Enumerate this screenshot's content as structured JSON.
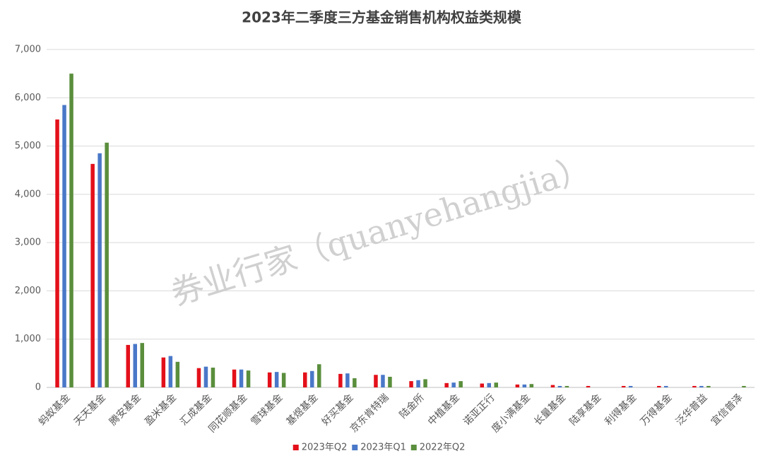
{
  "chart_data": {
    "type": "bar",
    "title": "2023年二季度三方基金销售机构权益类规模",
    "watermark": "券业行家（quanyehangjia）",
    "categories": [
      "蚂蚁基金",
      "天天基金",
      "腾安基金",
      "盈米基金",
      "汇成基金",
      "同花顺基金",
      "雪球基金",
      "基煜基金",
      "好买基金",
      "京东肯特瑞",
      "陆金所",
      "中植基金",
      "诺亚正行",
      "度小满基金",
      "长量基金",
      "陆享基金",
      "利得基金",
      "万得基金",
      "泛华普益",
      "宜信普泽"
    ],
    "series": [
      {
        "name": "2023年Q2",
        "color": "#e3101a",
        "values": [
          5550,
          4630,
          880,
          620,
          400,
          370,
          310,
          310,
          280,
          260,
          130,
          90,
          80,
          60,
          50,
          30,
          30,
          30,
          30,
          null
        ]
      },
      {
        "name": "2023年Q1",
        "color": "#4a78c8",
        "values": [
          5850,
          4850,
          900,
          650,
          430,
          370,
          320,
          340,
          290,
          260,
          150,
          100,
          90,
          60,
          30,
          null,
          30,
          30,
          30,
          null
        ]
      },
      {
        "name": "2022年Q2",
        "color": "#5a8e3c",
        "values": [
          6500,
          5070,
          920,
          530,
          410,
          350,
          300,
          480,
          190,
          220,
          170,
          130,
          100,
          70,
          30,
          null,
          null,
          null,
          30,
          30
        ]
      }
    ],
    "ylim": [
      0,
      7000
    ],
    "yticks": [
      0,
      {
        "value": 1000,
        "label": "1,000"
      },
      {
        "value": 2000,
        "label": "2,000"
      },
      {
        "value": 3000,
        "label": "3,000"
      },
      {
        "value": 4000,
        "label": "4,000"
      },
      {
        "value": 5000,
        "label": "5,000"
      },
      {
        "value": 6000,
        "label": "6,000"
      },
      {
        "value": 7000,
        "label": "7,000"
      }
    ],
    "grid": true,
    "legend": "bottom"
  }
}
